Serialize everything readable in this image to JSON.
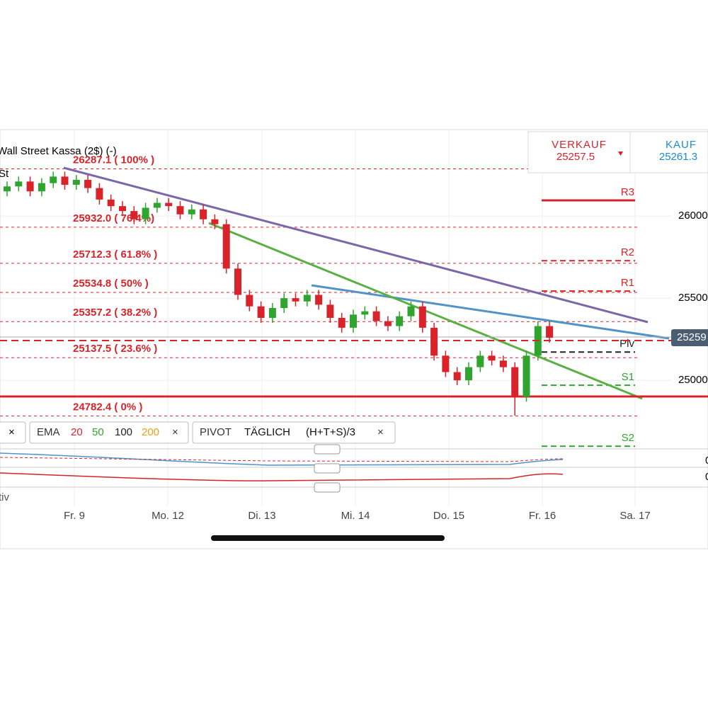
{
  "header": {
    "title": "Wall Street Kassa (2$) (-)",
    "subtitle": "St"
  },
  "quote": {
    "sell_label": "VERKAUF",
    "sell_price": "25257.5",
    "buy_label": "KAUF",
    "buy_price": "25261.3"
  },
  "chart_data": {
    "type": "candlestick",
    "x_labels": [
      "Fr. 9",
      "Mo. 12",
      "Di. 13",
      "Mi. 14",
      "Do. 15",
      "Fr. 16",
      "Sa. 17"
    ],
    "open": [
      26150,
      26180,
      26210,
      26150,
      26200,
      26240,
      26190,
      26220,
      26170,
      26100,
      26060,
      26030,
      25980,
      26050,
      26080,
      26060,
      26010,
      26040,
      25980,
      25950,
      25680,
      25520,
      25450,
      25380,
      25440,
      25500,
      25480,
      25520,
      25460,
      25380,
      25320,
      25400,
      25420,
      25360,
      25330,
      25390,
      25450,
      25320,
      25150,
      25050,
      25000,
      25080,
      25150,
      25120,
      25080,
      24900,
      25150,
      25330
    ],
    "high": [
      26210,
      26240,
      26240,
      26230,
      26270,
      26270,
      26250,
      26250,
      26200,
      26130,
      26090,
      26060,
      26080,
      26110,
      26110,
      26090,
      26070,
      26070,
      26010,
      25980,
      25710,
      25550,
      25480,
      25470,
      25530,
      25530,
      25550,
      25550,
      25490,
      25410,
      25430,
      25450,
      25450,
      25390,
      25420,
      25480,
      25480,
      25350,
      25180,
      25080,
      25110,
      25180,
      25180,
      25150,
      25110,
      25180,
      25360,
      25360
    ],
    "low": [
      26120,
      26150,
      26120,
      26120,
      26170,
      26160,
      26160,
      26140,
      26070,
      26030,
      26000,
      25950,
      25950,
      26020,
      26030,
      25980,
      25980,
      25950,
      25920,
      25650,
      25490,
      25420,
      25350,
      25350,
      25410,
      25450,
      25450,
      25430,
      25350,
      25290,
      25290,
      25370,
      25330,
      25300,
      25300,
      25360,
      25290,
      25120,
      25020,
      24970,
      24970,
      25050,
      25090,
      25050,
      24785,
      24870,
      25120,
      25229
    ],
    "close": [
      26180,
      26210,
      26150,
      26200,
      26240,
      26190,
      26220,
      26170,
      26100,
      26060,
      26030,
      25980,
      26050,
      26080,
      26060,
      26010,
      26040,
      25980,
      25950,
      25680,
      25520,
      25450,
      25380,
      25440,
      25500,
      25480,
      25520,
      25460,
      25380,
      25320,
      25400,
      25420,
      25360,
      25330,
      25390,
      25450,
      25320,
      25150,
      25050,
      25000,
      25080,
      25150,
      25120,
      25080,
      24900,
      25150,
      25330,
      25259
    ],
    "colors": {
      "up": "#2fa52f",
      "down": "#d9232a"
    },
    "ylim": [
      24600,
      26526
    ],
    "yticks": [
      26000,
      25500,
      25000
    ],
    "last_price": 25259,
    "fibonacci": [
      {
        "value": 26287.1,
        "label": "26287.1 ( 100% )"
      },
      {
        "value": 25932.0,
        "label": "25932.0 ( 76.4%)"
      },
      {
        "value": 25712.3,
        "label": "25712.3 ( 61.8% )"
      },
      {
        "value": 25534.8,
        "label": "25534.8 ( 50% )"
      },
      {
        "value": 25357.2,
        "label": "25357.2 ( 38.2% )"
      },
      {
        "value": 25137.5,
        "label": "25137.5 ( 23.6% )"
      },
      {
        "value": 24782.4,
        "label": "24782.4 ( 0% )"
      }
    ],
    "pivots": [
      {
        "name": "R3",
        "value": 26095,
        "color": "#d9232a"
      },
      {
        "name": "R2",
        "value": 25728,
        "color": "#d9232a"
      },
      {
        "name": "R1",
        "value": 25543,
        "color": "#d9232a"
      },
      {
        "name": "Piv",
        "value": 25172,
        "color": "#222222"
      },
      {
        "name": "S1",
        "value": 24970,
        "color": "#2fa52f"
      },
      {
        "name": "S2",
        "value": 24599,
        "color": "#2fa52f"
      }
    ]
  },
  "indicators": {
    "ema_name": "EMA",
    "ema_periods": [
      20,
      50,
      100,
      200
    ],
    "ema_colors": [
      "#d9232a",
      "#2fa52f",
      "#222222",
      "#e8a317"
    ],
    "pivot_name": "PIVOT",
    "pivot_period": "TÄGLICH",
    "pivot_formula": "(H+T+S)/3",
    "pane_labels": [
      "0",
      "0"
    ],
    "volume_label": "tiv"
  }
}
